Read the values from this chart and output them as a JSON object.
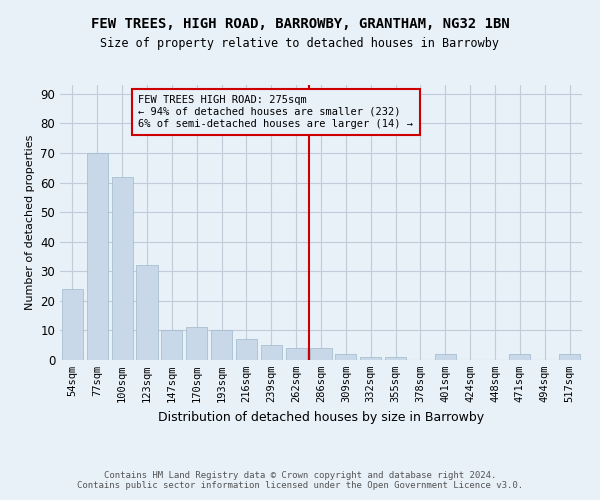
{
  "title": "FEW TREES, HIGH ROAD, BARROWBY, GRANTHAM, NG32 1BN",
  "subtitle": "Size of property relative to detached houses in Barrowby",
  "xlabel": "Distribution of detached houses by size in Barrowby",
  "ylabel": "Number of detached properties",
  "bar_labels": [
    "54sqm",
    "77sqm",
    "100sqm",
    "123sqm",
    "147sqm",
    "170sqm",
    "193sqm",
    "216sqm",
    "239sqm",
    "262sqm",
    "286sqm",
    "309sqm",
    "332sqm",
    "355sqm",
    "378sqm",
    "401sqm",
    "424sqm",
    "448sqm",
    "471sqm",
    "494sqm",
    "517sqm"
  ],
  "bar_values": [
    24,
    70,
    62,
    32,
    10,
    11,
    10,
    7,
    5,
    4,
    4,
    2,
    1,
    1,
    0,
    2,
    0,
    0,
    2,
    0,
    2
  ],
  "bar_color": "#c8d8e8",
  "bar_edgecolor": "#a0b8cc",
  "vline_x_index": 10,
  "vline_color": "#cc0000",
  "annotation_text": "FEW TREES HIGH ROAD: 275sqm\n← 94% of detached houses are smaller (232)\n6% of semi-detached houses are larger (14) →",
  "annotation_box_color": "#cc0000",
  "ylim": [
    0,
    93
  ],
  "yticks": [
    0,
    10,
    20,
    30,
    40,
    50,
    60,
    70,
    80,
    90
  ],
  "grid_color": "#c0ccd8",
  "bg_color": "#e8f0f8",
  "footer": "Contains HM Land Registry data © Crown copyright and database right 2024.\nContains public sector information licensed under the Open Government Licence v3.0."
}
